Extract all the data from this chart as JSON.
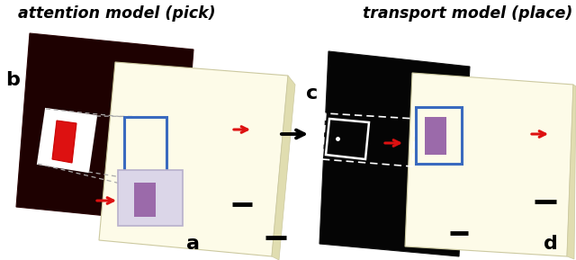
{
  "bg_color": "#ffffff",
  "title_attention": "attention model (pick)",
  "title_transport": "transport model (place)",
  "label_a": "a",
  "label_b": "b",
  "label_c": "c",
  "label_d": "d",
  "dark_red_color": "#1e0101",
  "black_color": "#050505",
  "cream_color": "#fdfbe8",
  "cream_edge_color": "#e8e4c0",
  "blue_rect_color": "#3a6abf",
  "light_box_color": "#dbd6e8",
  "light_box_edge": "#b8b0cc",
  "purple_color": "#9b6aaa",
  "red_color": "#dd1111",
  "white_color": "#ffffff",
  "gray_dash_color": "#aaaaaa",
  "arrow_black": "#111111"
}
